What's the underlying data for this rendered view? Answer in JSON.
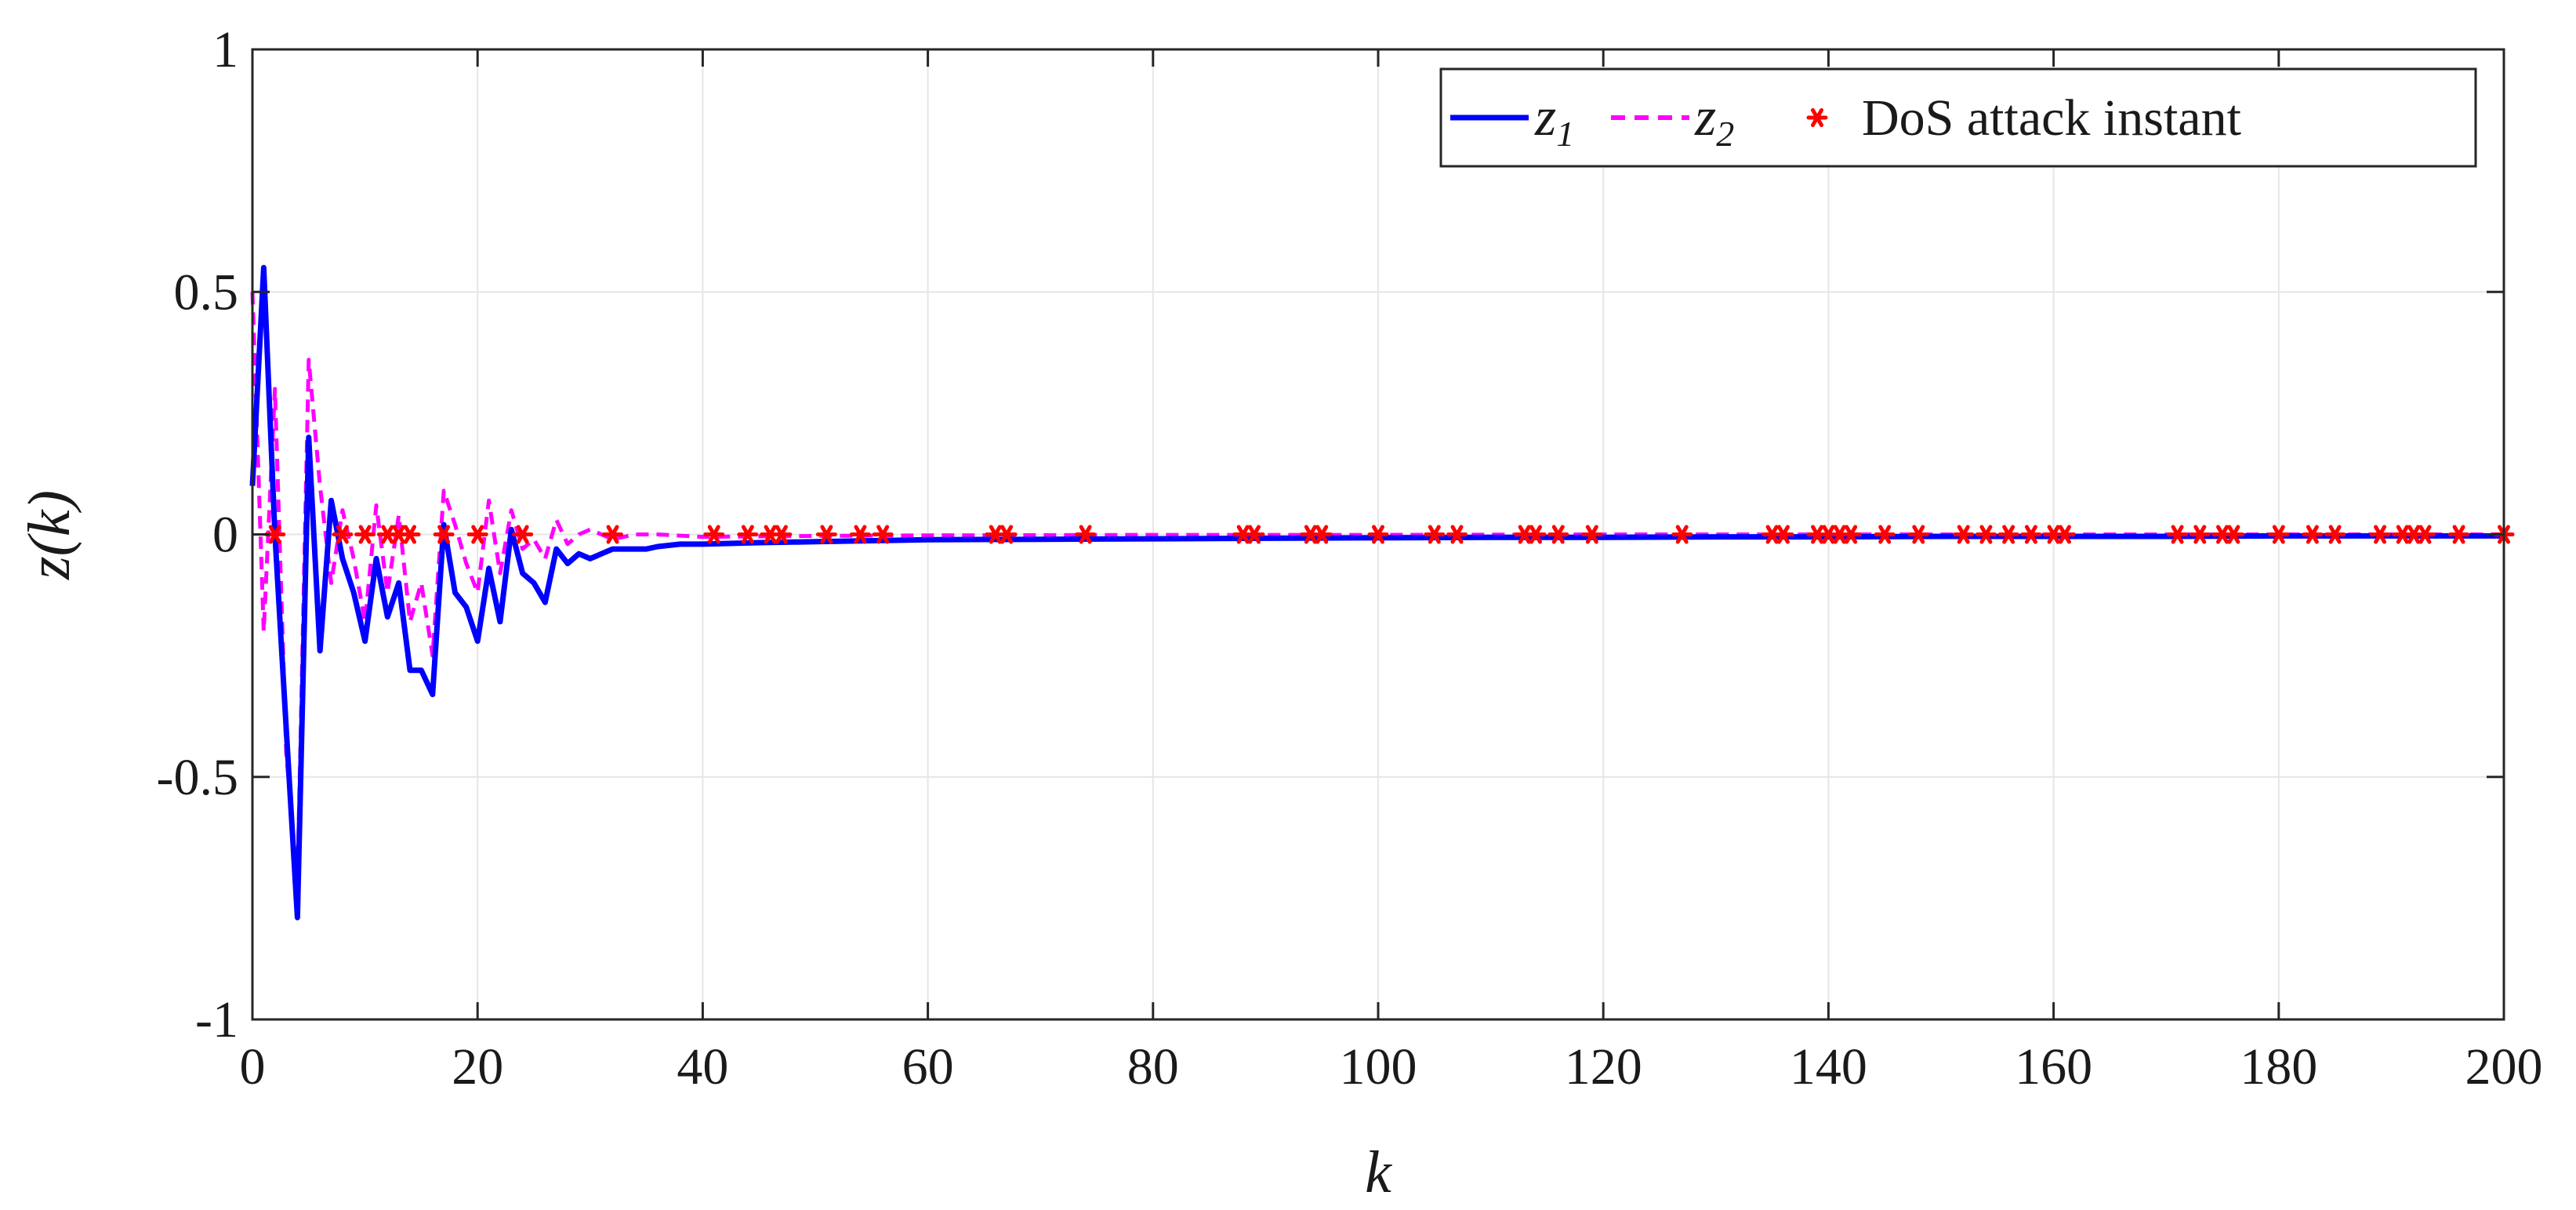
{
  "chart_data": {
    "type": "line",
    "xlabel": "k",
    "ylabel": "z(k)",
    "xlim": [
      0,
      200
    ],
    "ylim": [
      -1,
      1
    ],
    "xticks": [
      "0",
      "20",
      "40",
      "60",
      "80",
      "100",
      "120",
      "140",
      "160",
      "180",
      "200"
    ],
    "yticks": [
      "-1",
      "-0.5",
      "0",
      "0.5",
      "1"
    ],
    "grid": true,
    "legend_placement": "top-right",
    "colors": {
      "z1": "#0000ff",
      "z2": "#ff00ff",
      "dos": "#ff0000",
      "grid": "#e6e6e6",
      "axis": "#262626"
    },
    "legend": {
      "z1_main": "z",
      "z1_sub": "1",
      "z2_main": "z",
      "z2_sub": "2",
      "dos": "DoS attack instant"
    },
    "series": [
      {
        "key": "z1",
        "style": "solid",
        "x": [
          0,
          1,
          2,
          3,
          4,
          5,
          6,
          7,
          8,
          9,
          10,
          11,
          12,
          13,
          14,
          15,
          16,
          17,
          18,
          19,
          20,
          21,
          22,
          23,
          24,
          25,
          26,
          27,
          28,
          29,
          30,
          31,
          32,
          33,
          34,
          35,
          36,
          38,
          40,
          45,
          50,
          55,
          60,
          70,
          80,
          90,
          100,
          110,
          120,
          130,
          140,
          150,
          160,
          170,
          180,
          190,
          200
        ],
        "y": [
          0.1,
          0.55,
          0.0,
          -0.4,
          -0.79,
          0.2,
          -0.24,
          0.07,
          -0.05,
          -0.12,
          -0.22,
          -0.05,
          -0.17,
          -0.1,
          -0.28,
          -0.28,
          -0.33,
          0.02,
          -0.12,
          -0.15,
          -0.22,
          -0.07,
          -0.18,
          0.01,
          -0.08,
          -0.1,
          -0.14,
          -0.03,
          -0.06,
          -0.04,
          -0.05,
          -0.04,
          -0.03,
          -0.03,
          -0.03,
          -0.03,
          -0.025,
          -0.02,
          -0.02,
          -0.017,
          -0.015,
          -0.013,
          -0.011,
          -0.01,
          -0.009,
          -0.008,
          -0.007,
          -0.006,
          -0.006,
          -0.005,
          -0.005,
          -0.004,
          -0.004,
          -0.004,
          -0.003,
          -0.003,
          -0.003
        ]
      },
      {
        "key": "z2",
        "style": "dashed",
        "x": [
          0,
          1,
          2,
          3,
          4,
          5,
          6,
          7,
          8,
          9,
          10,
          11,
          12,
          13,
          14,
          15,
          16,
          17,
          18,
          19,
          20,
          21,
          22,
          23,
          24,
          25,
          26,
          27,
          28,
          29,
          30,
          32,
          34,
          36,
          40,
          50,
          60,
          80,
          100,
          120,
          140,
          160,
          180,
          200
        ],
        "y": [
          0.5,
          -0.2,
          0.3,
          -0.45,
          -0.72,
          0.36,
          0.1,
          -0.1,
          0.05,
          -0.05,
          -0.18,
          0.06,
          -0.12,
          0.04,
          -0.18,
          -0.1,
          -0.25,
          0.09,
          0.02,
          -0.06,
          -0.12,
          0.07,
          -0.08,
          0.05,
          -0.03,
          -0.01,
          -0.05,
          0.03,
          -0.02,
          0.0,
          0.01,
          -0.01,
          0.0,
          0.0,
          -0.005,
          -0.003,
          -0.002,
          -0.001,
          -0.001,
          0.0,
          0.0,
          0.0,
          0.0,
          0.0
        ]
      },
      {
        "key": "dos",
        "style": "markers",
        "x": [
          2,
          8,
          10,
          12,
          13,
          14,
          17,
          20,
          24,
          32,
          41,
          44,
          46,
          47,
          51,
          54,
          56,
          66,
          67,
          74,
          88,
          89,
          94,
          95,
          100,
          105,
          107,
          113,
          114,
          116,
          119,
          127,
          135,
          136,
          139,
          140,
          141,
          142,
          145,
          148,
          152,
          154,
          156,
          158,
          160,
          161,
          171,
          173,
          175,
          176,
          180,
          183,
          185,
          189,
          191,
          192,
          193,
          196,
          200
        ],
        "y": [
          0,
          0,
          0,
          0,
          0,
          0,
          0,
          0,
          0,
          0,
          0,
          0,
          0,
          0,
          0,
          0,
          0,
          0,
          0,
          0,
          0,
          0,
          0,
          0,
          0,
          0,
          0,
          0,
          0,
          0,
          0,
          0,
          0,
          0,
          0,
          0,
          0,
          0,
          0,
          0,
          0,
          0,
          0,
          0,
          0,
          0,
          0,
          0,
          0,
          0,
          0,
          0,
          0,
          0,
          0,
          0,
          0,
          0,
          0
        ]
      }
    ]
  }
}
